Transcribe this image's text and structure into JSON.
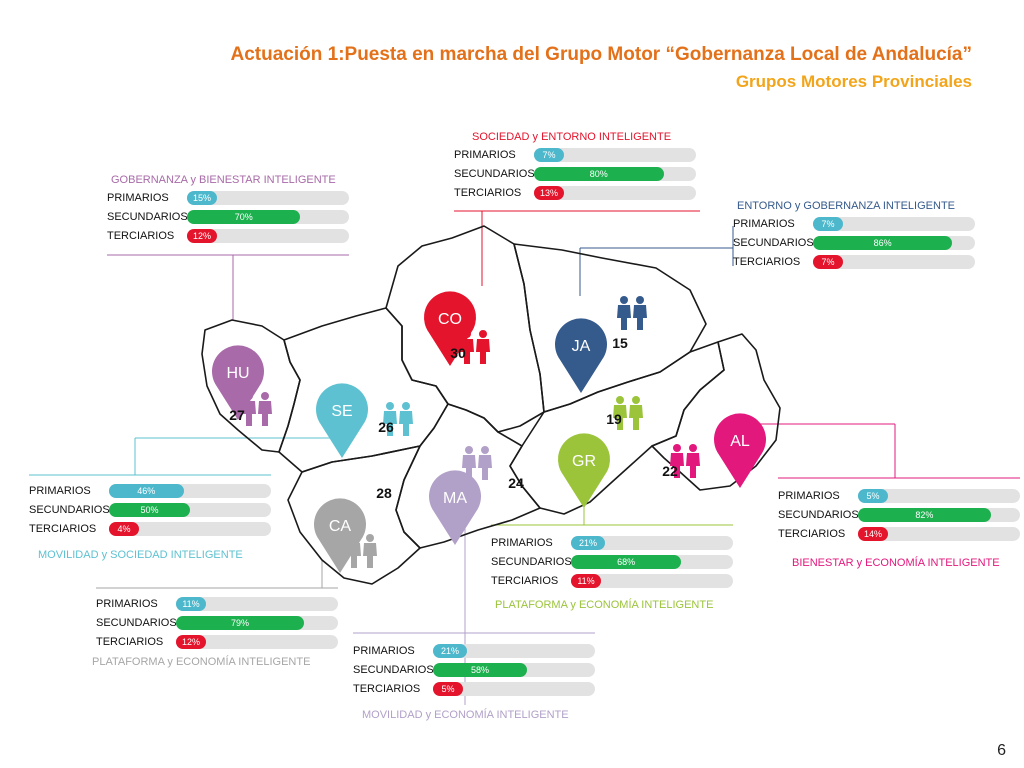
{
  "slide": {
    "title": "Actuación 1:Puesta en marcha del Grupo Motor “Gobernanza Local de Andalucía”",
    "subtitle": "Grupos Motores Provinciales",
    "page_number": "6"
  },
  "colors": {
    "primarios": "#4db8cc",
    "secundarios": "#1db04f",
    "terciarios": "#e3142c",
    "track": "#e2e2e2",
    "map_outline": "#1a1a1a"
  },
  "provinces": [
    {
      "code": "CO",
      "count": "30",
      "color": "#e3142c"
    },
    {
      "code": "JA",
      "count": "15",
      "color": "#355a8c"
    },
    {
      "code": "HU",
      "count": "27",
      "color": "#a86aa8"
    },
    {
      "code": "SE",
      "count": "26",
      "color": "#5ec1d1"
    },
    {
      "code": "GR",
      "count": "19",
      "color": "#9bc43a"
    },
    {
      "code": "AL",
      "count": "22",
      "color": "#e2187d"
    },
    {
      "code": "MA",
      "count": "24",
      "color": "#b1a0c8"
    },
    {
      "code": "CA",
      "count": "28",
      "color": "#a6a6a6"
    }
  ],
  "panels": [
    {
      "province": "CO",
      "caption": "SOCIEDAD  y ENTORNO INTELIGENTE",
      "caption_color": "#e3142c",
      "rows": [
        {
          "label": "PRIMARIOS",
          "value": 7,
          "text": "7%"
        },
        {
          "label": "SECUNDARIOS",
          "value": 80,
          "text": "80%"
        },
        {
          "label": "TERCIARIOS",
          "value": 13,
          "text": "13%"
        }
      ]
    },
    {
      "province": "HU",
      "caption": "GOBERNANZA y BIENESTAR INTELIGENTE",
      "caption_color": "#a86aa8",
      "rows": [
        {
          "label": "PRIMARIOS",
          "value": 15,
          "text": "15%"
        },
        {
          "label": "SECUNDARIOS",
          "value": 70,
          "text": "70%"
        },
        {
          "label": "TERCIARIOS",
          "value": 12,
          "text": "12%"
        }
      ]
    },
    {
      "province": "JA",
      "caption": "ENTORNO  y  GOBERNANZA INTELIGENTE",
      "caption_color": "#355a8c",
      "rows": [
        {
          "label": "PRIMARIOS",
          "value": 7,
          "text": "7%"
        },
        {
          "label": "SECUNDARIOS",
          "value": 86,
          "text": "86%"
        },
        {
          "label": "TERCIARIOS",
          "value": 7,
          "text": "7%"
        }
      ]
    },
    {
      "province": "SE",
      "caption": "MOVILIDAD  y  SOCIEDAD INTELIGENTE",
      "caption_color": "#5ec1d1",
      "rows": [
        {
          "label": "PRIMARIOS",
          "value": 46,
          "text": "46%"
        },
        {
          "label": "SECUNDARIOS",
          "value": 50,
          "text": "50%"
        },
        {
          "label": "TERCIARIOS",
          "value": 4,
          "text": "4%"
        }
      ]
    },
    {
      "province": "AL",
      "caption": "BIENESTAR y ECONOMÍA INTELIGENTE",
      "caption_color": "#e2187d",
      "rows": [
        {
          "label": "PRIMARIOS",
          "value": 5,
          "text": "5%"
        },
        {
          "label": "SECUNDARIOS",
          "value": 82,
          "text": "82%"
        },
        {
          "label": "TERCIARIOS",
          "value": 14,
          "text": "14%"
        }
      ]
    },
    {
      "province": "GR",
      "caption": "PLATAFORMA  y ECONOMÍA INTELIGENTE",
      "caption_color": "#9bc43a",
      "rows": [
        {
          "label": "PRIMARIOS",
          "value": 21,
          "text": "21%"
        },
        {
          "label": "SECUNDARIOS",
          "value": 68,
          "text": "68%"
        },
        {
          "label": "TERCIARIOS",
          "value": 11,
          "text": "11%"
        }
      ]
    },
    {
      "province": "CA",
      "caption": "PLATAFORMA  y ECONOMÍA INTELIGENTE",
      "caption_color": "#a6a6a6",
      "rows": [
        {
          "label": "PRIMARIOS",
          "value": 11,
          "text": "11%"
        },
        {
          "label": "SECUNDARIOS",
          "value": 79,
          "text": "79%"
        },
        {
          "label": "TERCIARIOS",
          "value": 12,
          "text": "12%"
        }
      ]
    },
    {
      "province": "MA",
      "caption": "MOVILIDAD  y  ECONOMÍA INTELIGENTE",
      "caption_color": "#b1a0c8",
      "rows": [
        {
          "label": "PRIMARIOS",
          "value": 21,
          "text": "21%"
        },
        {
          "label": "SECUNDARIOS",
          "value": 58,
          "text": "58%"
        },
        {
          "label": "TERCIARIOS",
          "value": 5,
          "text": "5%"
        }
      ]
    }
  ]
}
